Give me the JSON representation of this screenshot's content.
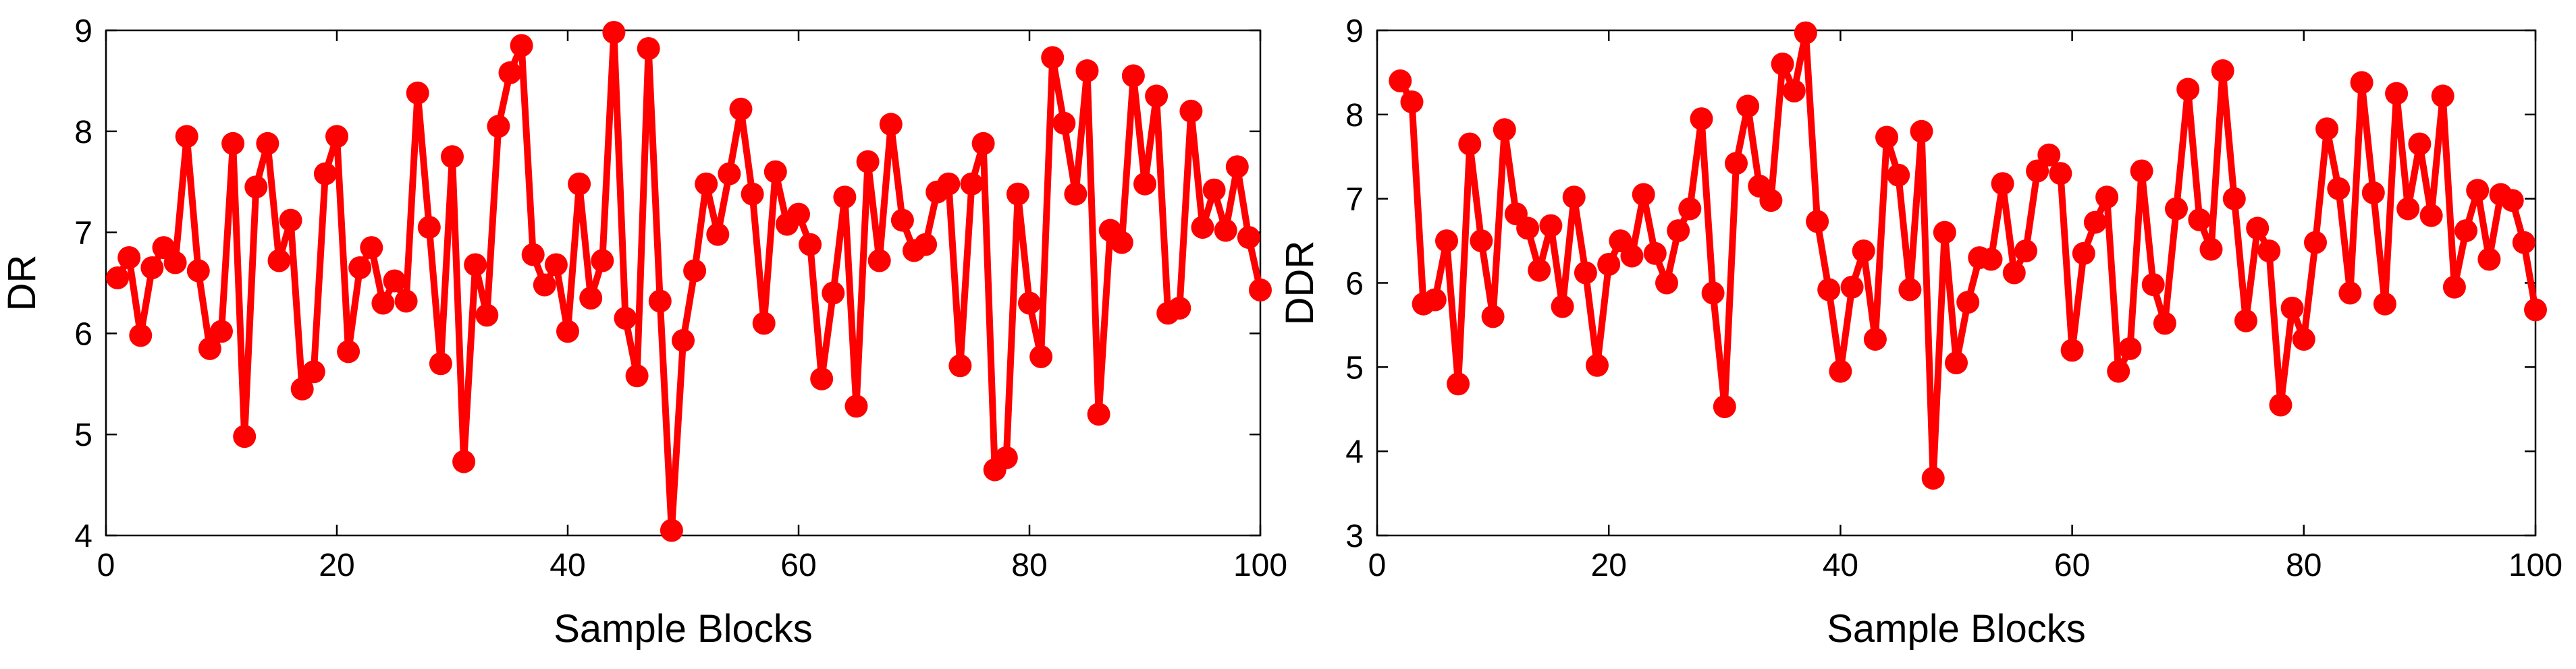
{
  "chart_data": [
    {
      "type": "line",
      "xlabel": "Sample Blocks",
      "ylabel": "DR",
      "xlim": [
        0,
        100
      ],
      "ylim": [
        4,
        9
      ],
      "xticks": [
        "0",
        "20",
        "40",
        "60",
        "80",
        "100"
      ],
      "yticks": [
        "4",
        "5",
        "6",
        "7",
        "8",
        "9"
      ],
      "grid": false,
      "color": "#ff0000",
      "x": [
        1,
        2,
        3,
        4,
        5,
        6,
        7,
        8,
        9,
        10,
        11,
        12,
        13,
        14,
        15,
        16,
        17,
        18,
        19,
        20,
        21,
        22,
        23,
        24,
        25,
        26,
        27,
        28,
        29,
        30,
        31,
        32,
        33,
        34,
        35,
        36,
        37,
        38,
        39,
        40,
        41,
        42,
        43,
        44,
        45,
        46,
        47,
        48,
        49,
        50,
        51,
        52,
        53,
        54,
        55,
        56,
        57,
        58,
        59,
        60,
        61,
        62,
        63,
        64,
        65,
        66,
        67,
        68,
        69,
        70,
        71,
        72,
        73,
        74,
        75,
        76,
        77,
        78,
        79,
        80,
        81,
        82,
        83,
        84,
        85,
        86,
        87,
        88,
        89,
        90,
        91,
        92,
        93,
        94,
        95,
        96,
        97,
        98,
        99,
        100
      ],
      "y": [
        6.55,
        6.75,
        5.98,
        6.65,
        6.85,
        6.7,
        7.95,
        6.62,
        5.85,
        6.02,
        7.88,
        4.98,
        7.45,
        7.88,
        6.72,
        7.12,
        5.45,
        5.62,
        7.58,
        7.95,
        5.82,
        6.65,
        6.85,
        6.3,
        6.52,
        6.32,
        8.38,
        7.05,
        5.7,
        7.75,
        4.73,
        6.68,
        6.18,
        8.05,
        8.58,
        8.85,
        6.78,
        6.48,
        6.68,
        6.02,
        7.48,
        6.35,
        6.72,
        8.98,
        6.15,
        5.58,
        8.82,
        6.32,
        4.05,
        5.93,
        6.62,
        7.48,
        6.98,
        7.58,
        8.22,
        7.38,
        6.1,
        7.6,
        7.08,
        7.18,
        6.88,
        5.55,
        6.4,
        7.35,
        5.28,
        7.7,
        6.72,
        8.07,
        7.12,
        6.82,
        6.88,
        7.4,
        7.48,
        5.68,
        7.48,
        7.88,
        4.65,
        4.77,
        7.38,
        6.3,
        5.77,
        8.73,
        8.08,
        7.38,
        8.6,
        5.2,
        7.02,
        6.9,
        8.55,
        7.48,
        8.35,
        6.2,
        6.25,
        8.2,
        7.05,
        7.42,
        7.02,
        7.65,
        6.95,
        6.43
      ]
    },
    {
      "type": "line",
      "xlabel": "Sample Blocks",
      "ylabel": "DDR",
      "xlim": [
        0,
        100
      ],
      "ylim": [
        3,
        9
      ],
      "xticks": [
        "0",
        "20",
        "40",
        "60",
        "80",
        "100"
      ],
      "yticks": [
        "3",
        "4",
        "5",
        "6",
        "7",
        "8",
        "9"
      ],
      "grid": false,
      "color": "#ff0000",
      "x": [
        2,
        3,
        4,
        5,
        6,
        7,
        8,
        9,
        10,
        11,
        12,
        13,
        14,
        15,
        16,
        17,
        18,
        19,
        20,
        21,
        22,
        23,
        24,
        25,
        26,
        27,
        28,
        29,
        30,
        31,
        32,
        33,
        34,
        35,
        36,
        37,
        38,
        39,
        40,
        41,
        42,
        43,
        44,
        45,
        46,
        47,
        48,
        49,
        50,
        51,
        52,
        53,
        54,
        55,
        56,
        57,
        58,
        59,
        60,
        61,
        62,
        63,
        64,
        65,
        66,
        67,
        68,
        69,
        70,
        71,
        72,
        73,
        74,
        75,
        76,
        77,
        78,
        79,
        80,
        81,
        82,
        83,
        84,
        85,
        86,
        87,
        88,
        89,
        90,
        91,
        92,
        93,
        94,
        95,
        96,
        97,
        98,
        99,
        100
      ],
      "y": [
        8.4,
        8.15,
        5.75,
        5.8,
        6.5,
        4.8,
        7.65,
        6.5,
        5.6,
        7.82,
        6.82,
        6.65,
        6.15,
        6.68,
        5.72,
        7.02,
        6.12,
        5.02,
        6.22,
        6.5,
        6.32,
        7.05,
        6.35,
        6.0,
        6.62,
        6.88,
        7.95,
        5.88,
        4.53,
        7.42,
        8.1,
        7.15,
        6.98,
        8.6,
        8.28,
        8.97,
        6.73,
        5.92,
        4.95,
        5.95,
        6.38,
        5.33,
        7.73,
        7.28,
        5.92,
        7.8,
        3.68,
        6.6,
        5.05,
        5.77,
        6.3,
        6.28,
        7.18,
        6.12,
        6.38,
        7.33,
        7.52,
        7.3,
        5.2,
        6.35,
        6.72,
        7.02,
        4.95,
        5.22,
        7.33,
        5.98,
        5.52,
        6.88,
        8.3,
        6.75,
        6.4,
        8.52,
        7.0,
        5.55,
        6.65,
        6.38,
        4.55,
        5.7,
        5.33,
        6.48,
        7.83,
        7.12,
        5.88,
        8.38,
        7.07,
        5.75,
        8.25,
        6.88,
        7.65,
        6.8,
        8.22,
        5.95,
        6.62,
        7.1,
        6.28,
        7.05,
        6.98,
        6.48,
        5.68
      ]
    }
  ]
}
